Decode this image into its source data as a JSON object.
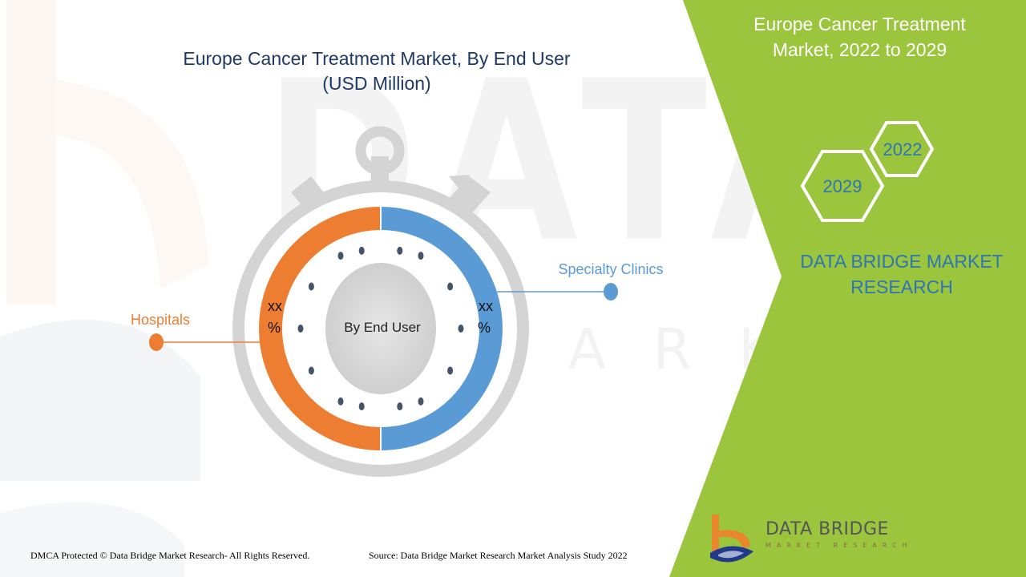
{
  "colors": {
    "accent_green": "#9bc53d",
    "hospitals": "#ed7d31",
    "specialty_clinics": "#5b9bd5",
    "title_navy": "#1f3864",
    "brand_blue": "#2e75b6",
    "gray_ring": "#d9d9d9"
  },
  "chart_data": {
    "type": "pie",
    "title": "Europe Cancer Treatment Market, By End User",
    "subtitle": "(USD Million)",
    "center_label": "By End User",
    "slices": [
      {
        "name": "Specialty Clinics",
        "value_label": [
          "xx",
          "%"
        ],
        "color": "#5b9bd5"
      },
      {
        "name": "Hospitals",
        "value_label": [
          "xx",
          "%"
        ],
        "color": "#ed7d31"
      }
    ]
  },
  "side_panel": {
    "title": [
      "Europe Cancer Treatment",
      "Market, 2022 to 2029"
    ],
    "years": [
      "2022",
      "2029"
    ],
    "brand": [
      "DATA BRIDGE MARKET",
      "RESEARCH"
    ]
  },
  "watermark": {
    "main": "DATA BRIDGE",
    "sub": "MARKET RESEARCH"
  },
  "logo": {
    "name": "DATA BRIDGE",
    "tagline": "MARKET RESEARCH"
  },
  "footer": {
    "left": "DMCA Protected © Data Bridge Market Research- All Rights Reserved.",
    "right": "Source: Data Bridge Market Research Market Analysis Study 2022"
  }
}
